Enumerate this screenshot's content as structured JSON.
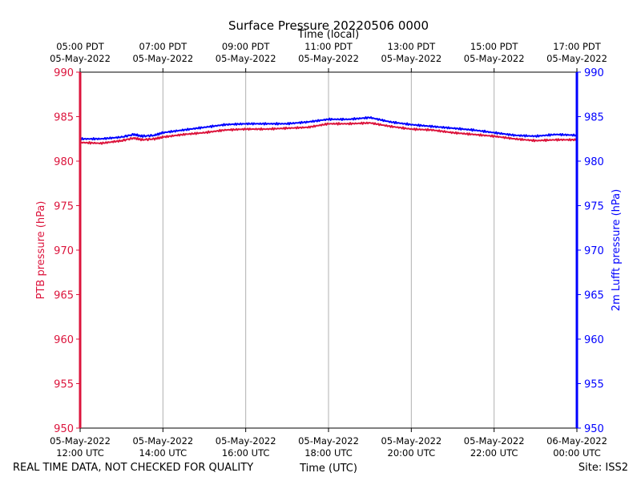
{
  "chart_data": {
    "type": "line",
    "title": "Surface Pressure 20220506 0000",
    "xlabel": "Time (UTC)",
    "top_xlabel": "Time (local)",
    "ylabel_left": "PTB pressure (hPa)",
    "ylabel_right": "2m Lufft pressure (hPa)",
    "ylim": [
      950,
      990
    ],
    "xlim": [
      "2022-05-05 12:00",
      "2022-05-06 00:00"
    ],
    "grid": "vertical",
    "yticks": [
      "950",
      "955",
      "960",
      "965",
      "970",
      "975",
      "980",
      "985",
      "990"
    ],
    "x_ticks_utc": [
      {
        "date": "05-May-2022",
        "time": "12:00 UTC"
      },
      {
        "date": "05-May-2022",
        "time": "14:00 UTC"
      },
      {
        "date": "05-May-2022",
        "time": "16:00 UTC"
      },
      {
        "date": "05-May-2022",
        "time": "18:00 UTC"
      },
      {
        "date": "05-May-2022",
        "time": "20:00 UTC"
      },
      {
        "date": "05-May-2022",
        "time": "22:00 UTC"
      },
      {
        "date": "06-May-2022",
        "time": "00:00 UTC"
      }
    ],
    "x_ticks_local": [
      {
        "time": "05:00 PDT",
        "date": "05-May-2022"
      },
      {
        "time": "07:00 PDT",
        "date": "05-May-2022"
      },
      {
        "time": "09:00 PDT",
        "date": "05-May-2022"
      },
      {
        "time": "11:00 PDT",
        "date": "05-May-2022"
      },
      {
        "time": "13:00 PDT",
        "date": "05-May-2022"
      },
      {
        "time": "15:00 PDT",
        "date": "05-May-2022"
      },
      {
        "time": "17:00 PDT",
        "date": "05-May-2022"
      }
    ],
    "colors": {
      "ptb": "#dc143c",
      "lufft": "#0000ff"
    },
    "series": [
      {
        "key": "ptb",
        "hours": [
          12.0,
          12.5,
          13.0,
          13.3,
          13.5,
          13.8,
          14.0,
          14.5,
          15.0,
          15.5,
          16.0,
          16.5,
          17.0,
          17.5,
          18.0,
          18.5,
          19.0,
          19.5,
          20.0,
          20.5,
          21.0,
          21.5,
          22.0,
          22.5,
          23.0,
          23.5,
          24.0
        ],
        "values": [
          982.1,
          982.0,
          982.3,
          982.6,
          982.4,
          982.5,
          982.7,
          983.0,
          983.2,
          983.5,
          983.6,
          983.6,
          983.7,
          983.8,
          984.2,
          984.2,
          984.3,
          983.9,
          983.6,
          983.5,
          983.2,
          983.0,
          982.8,
          982.5,
          982.3,
          982.4,
          982.4
        ]
      },
      {
        "key": "lufft",
        "hours": [
          12.0,
          12.5,
          13.0,
          13.3,
          13.5,
          13.8,
          14.0,
          14.5,
          15.0,
          15.5,
          16.0,
          16.5,
          17.0,
          17.5,
          18.0,
          18.5,
          19.0,
          19.5,
          20.0,
          20.5,
          21.0,
          21.5,
          22.0,
          22.5,
          23.0,
          23.5,
          24.0
        ],
        "values": [
          982.5,
          982.5,
          982.7,
          983.0,
          982.8,
          982.9,
          983.2,
          983.5,
          983.8,
          984.1,
          984.2,
          984.2,
          984.2,
          984.4,
          984.7,
          984.7,
          984.9,
          984.4,
          984.1,
          983.9,
          983.7,
          983.5,
          983.2,
          982.9,
          982.8,
          983.0,
          982.9
        ]
      }
    ]
  },
  "footer": {
    "left": "REAL TIME DATA, NOT CHECKED FOR QUALITY",
    "right": "Site: ISS2"
  }
}
